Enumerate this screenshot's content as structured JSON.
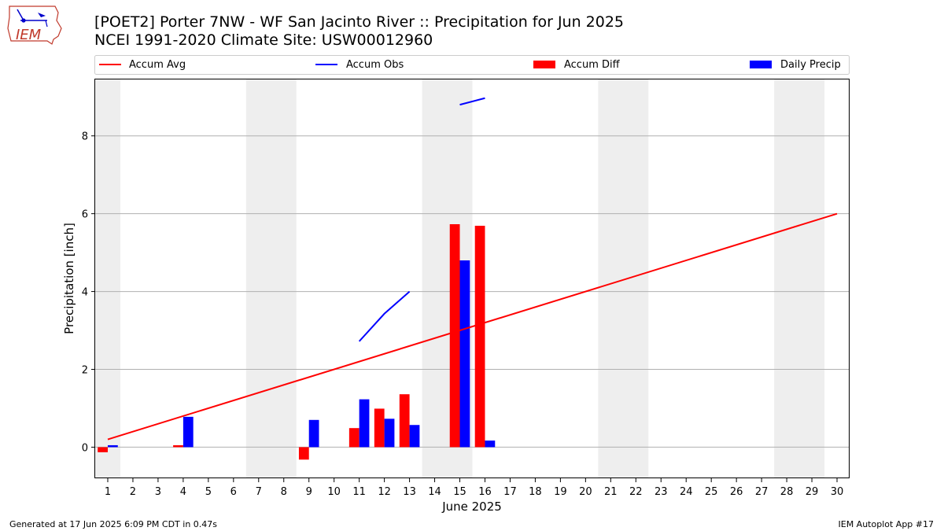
{
  "title_line1": "[POET2] Porter 7NW - WF San Jacinto River :: Precipitation for Jun 2025",
  "title_line2": "NCEI 1991-2020 Climate Site: USW00012960",
  "logo_text": "IEM",
  "footer_left": "Generated at 17 Jun 2025 6:09 PM CDT in 0.47s",
  "footer_right": "IEM Autoplot App #17",
  "colors": {
    "avg": "#ff0000",
    "obs": "#0000ff",
    "diff": "#ff0000",
    "daily": "#0000ff",
    "weekend": "#eeeeee",
    "grid": "#b0b0b0"
  },
  "chart_data": {
    "type": "bar",
    "xlabel": "June 2025",
    "ylabel": "Precipitation [inch]",
    "xlim": [
      0.5,
      30.5
    ],
    "ylim": [
      -0.8,
      9.45
    ],
    "yticks": [
      0,
      2,
      4,
      6,
      8
    ],
    "xticks": [
      1,
      2,
      3,
      4,
      5,
      6,
      7,
      8,
      9,
      10,
      11,
      12,
      13,
      14,
      15,
      16,
      17,
      18,
      19,
      20,
      21,
      22,
      23,
      24,
      25,
      26,
      27,
      28,
      29,
      30
    ],
    "grid": "horizontal",
    "legend": {
      "placement": "top",
      "entries": [
        "Accum Avg",
        "Accum Obs",
        "Accum Diff",
        "Daily Precip"
      ]
    },
    "weekend_bands": [
      [
        0.5,
        1.5
      ],
      [
        6.5,
        8.5
      ],
      [
        13.5,
        15.5
      ],
      [
        20.5,
        22.5
      ],
      [
        27.5,
        29.5
      ]
    ],
    "accum_avg": {
      "x": [
        1,
        30
      ],
      "y": [
        0.2,
        6.0
      ]
    },
    "accum_obs": [
      {
        "x": [
          11,
          12,
          13
        ],
        "y": [
          2.72,
          3.43,
          4.0
        ]
      },
      {
        "x": [
          15,
          16
        ],
        "y": [
          8.8,
          8.97
        ]
      }
    ],
    "accum_diff": [
      {
        "day": 1,
        "value": -0.13
      },
      {
        "day": 4,
        "value": 0.05
      },
      {
        "day": 9,
        "value": -0.32
      },
      {
        "day": 11,
        "value": 0.49
      },
      {
        "day": 12,
        "value": 0.99
      },
      {
        "day": 13,
        "value": 1.36
      },
      {
        "day": 15,
        "value": 5.73
      },
      {
        "day": 16,
        "value": 5.69
      }
    ],
    "daily_precip": [
      {
        "day": 1,
        "value": 0.05
      },
      {
        "day": 4,
        "value": 0.78
      },
      {
        "day": 9,
        "value": 0.7
      },
      {
        "day": 11,
        "value": 1.23
      },
      {
        "day": 12,
        "value": 0.73
      },
      {
        "day": 13,
        "value": 0.57
      },
      {
        "day": 15,
        "value": 4.8
      },
      {
        "day": 16,
        "value": 0.17
      }
    ]
  }
}
